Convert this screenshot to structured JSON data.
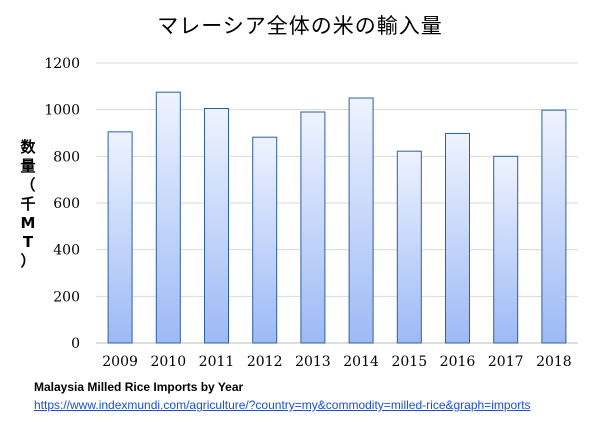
{
  "chart_data": {
    "type": "bar",
    "title": "マレーシア全体の米の輸入量",
    "ylabel": "数量（千MT）",
    "xlabel": "",
    "categories": [
      "2009",
      "2010",
      "2011",
      "2012",
      "2013",
      "2014",
      "2015",
      "2016",
      "2017",
      "2018"
    ],
    "values": [
      905,
      1075,
      1005,
      882,
      990,
      1050,
      822,
      898,
      800,
      998
    ],
    "ylim": [
      0,
      1200
    ],
    "yticks": [
      0,
      200,
      400,
      600,
      800,
      1000,
      1200
    ],
    "grid": true,
    "legend": "none",
    "bar_fill_top": "#eef3ff",
    "bar_fill_bottom": "#9dbaf5",
    "bar_stroke": "#2e5fa3"
  },
  "source": {
    "title": "Malaysia Milled Rice Imports by Year",
    "url": "https://www.indexmundi.com/agriculture/?country=my&commodity=milled-rice&graph=imports"
  }
}
